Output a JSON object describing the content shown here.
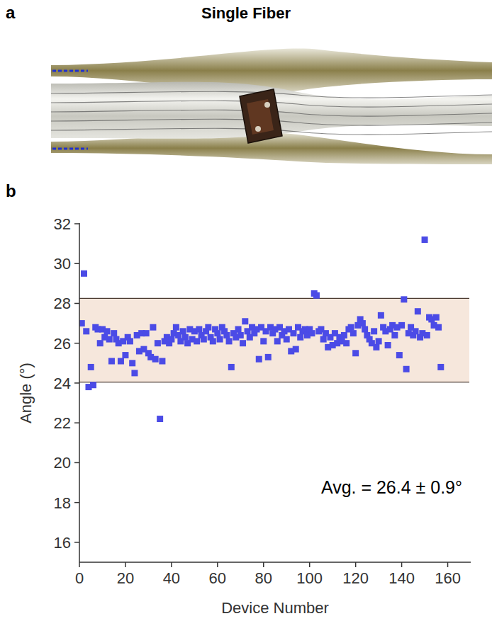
{
  "panels": [
    {
      "letter": "a",
      "title": "Single Fiber"
    },
    {
      "letter": "b"
    }
  ],
  "chart_data": {
    "type": "scatter",
    "x_label": "Device Number",
    "y_label": "Angle (°)",
    "annotation": "Avg. = 26.4 ± 0.9°",
    "color": "#4b4be6",
    "marker": "square",
    "grid": false,
    "xlim": [
      0,
      170
    ],
    "ylim": [
      15,
      32
    ],
    "xticks": [
      0,
      20,
      40,
      60,
      80,
      100,
      120,
      140,
      160
    ],
    "yticks": [
      16,
      18,
      20,
      22,
      24,
      26,
      28,
      30,
      32
    ],
    "band": [
      24.05,
      28.25
    ],
    "x": [
      1,
      2,
      3,
      4,
      5,
      6,
      7,
      8,
      9,
      10,
      11,
      12,
      13,
      14,
      15,
      16,
      17,
      18,
      19,
      20,
      21,
      22,
      23,
      24,
      25,
      26,
      27,
      28,
      29,
      30,
      31,
      32,
      33,
      34,
      35,
      36,
      37,
      38,
      39,
      40,
      41,
      42,
      43,
      44,
      45,
      46,
      47,
      48,
      49,
      50,
      51,
      52,
      53,
      54,
      55,
      56,
      57,
      58,
      59,
      60,
      61,
      62,
      63,
      64,
      65,
      66,
      67,
      68,
      69,
      70,
      71,
      72,
      73,
      74,
      75,
      76,
      77,
      78,
      79,
      80,
      81,
      82,
      83,
      84,
      85,
      86,
      87,
      88,
      89,
      90,
      91,
      92,
      93,
      94,
      95,
      96,
      97,
      98,
      99,
      100,
      101,
      102,
      103,
      104,
      105,
      106,
      107,
      108,
      109,
      110,
      111,
      112,
      113,
      114,
      115,
      116,
      117,
      118,
      119,
      120,
      121,
      122,
      123,
      124,
      125,
      126,
      127,
      128,
      129,
      130,
      131,
      132,
      133,
      134,
      135,
      136,
      137,
      138,
      139,
      140,
      141,
      142,
      143,
      144,
      145,
      146,
      147,
      148,
      149,
      150,
      151,
      152,
      153,
      154,
      155,
      156,
      157
    ],
    "values": [
      27.0,
      29.5,
      26.6,
      23.8,
      24.8,
      23.9,
      26.8,
      26.7,
      26.0,
      26.7,
      26.3,
      26.6,
      26.2,
      25.1,
      26.5,
      26.2,
      26.0,
      25.1,
      26.1,
      25.4,
      26.3,
      26.1,
      25.0,
      24.5,
      26.4,
      25.6,
      26.5,
      25.7,
      26.5,
      25.5,
      25.3,
      26.8,
      25.2,
      26.0,
      22.2,
      25.1,
      26.1,
      26.3,
      26.0,
      26.2,
      26.5,
      26.8,
      26.4,
      26.1,
      26.6,
      26.3,
      26.0,
      26.7,
      26.2,
      26.6,
      26.1,
      26.7,
      26.4,
      26.2,
      26.6,
      26.8,
      26.3,
      26.1,
      26.7,
      26.5,
      26.2,
      26.8,
      26.6,
      26.4,
      26.1,
      24.8,
      26.5,
      26.3,
      26.7,
      26.4,
      26.0,
      27.1,
      26.6,
      26.3,
      26.8,
      26.5,
      26.7,
      25.2,
      26.8,
      26.1,
      26.6,
      25.3,
      26.8,
      26.5,
      26.7,
      26.1,
      26.8,
      26.4,
      26.6,
      26.2,
      26.7,
      25.6,
      26.5,
      25.7,
      26.8,
      26.3,
      26.6,
      26.7,
      26.4,
      26.7,
      26.5,
      28.5,
      28.4,
      26.6,
      26.7,
      26.2,
      26.5,
      25.8,
      26.3,
      25.9,
      26.5,
      26.0,
      26.3,
      26.1,
      26.4,
      26.0,
      26.7,
      26.8,
      26.5,
      25.5,
      26.9,
      27.2,
      27.0,
      26.7,
      26.4,
      26.2,
      26.0,
      26.6,
      25.8,
      26.1,
      27.4,
      26.8,
      26.6,
      25.9,
      26.7,
      26.9,
      26.4,
      26.8,
      25.4,
      26.9,
      28.2,
      24.7,
      26.5,
      26.8,
      26.4,
      26.6,
      27.6,
      26.3,
      26.5,
      31.2,
      26.4,
      27.3,
      27.2,
      26.9,
      27.3,
      26.8,
      24.8
    ]
  }
}
